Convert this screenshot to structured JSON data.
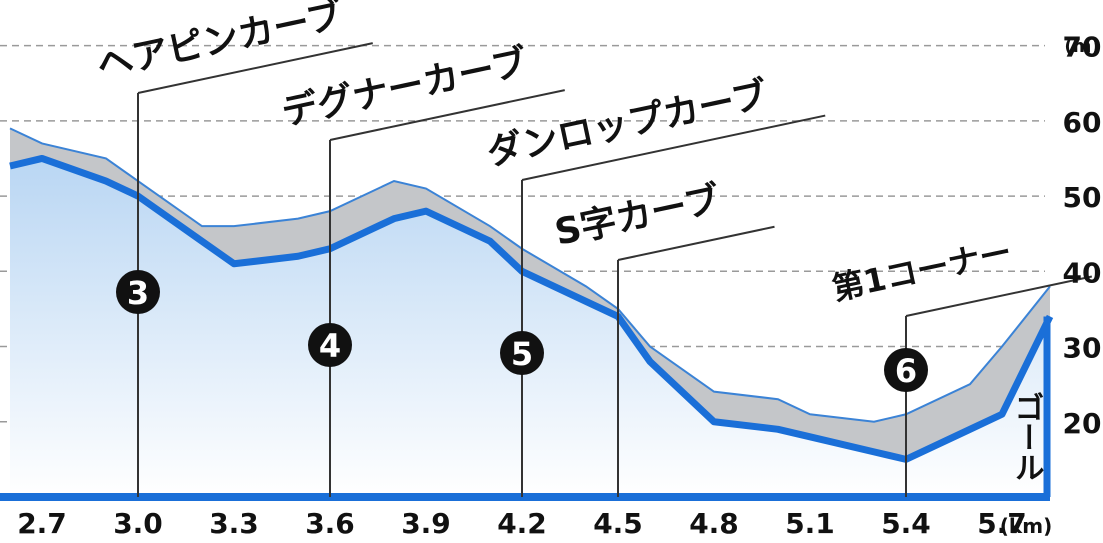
{
  "chart_data": {
    "type": "area",
    "x_unit": "(km)",
    "y_unit": "(m)",
    "xlim": [
      2.6,
      5.85
    ],
    "ylim": [
      10,
      75
    ],
    "x_ticks": [
      2.7,
      3.0,
      3.3,
      3.6,
      3.9,
      4.2,
      4.5,
      4.8,
      5.1,
      5.4,
      5.7
    ],
    "x_tick_labels": [
      "2.7",
      "3.0",
      "3.3",
      "3.6",
      "3.9",
      "4.2",
      "4.5",
      "4.8",
      "5.1",
      "5.4",
      "5.7"
    ],
    "y_ticks": [
      20,
      30,
      40,
      50,
      60,
      70
    ],
    "y_tick_labels": [
      "20",
      "30",
      "40",
      "50",
      "60",
      "70"
    ],
    "grid": "dashed-horizontal",
    "colors": {
      "line": "#1a6fd8",
      "outline": "#3b83d6",
      "fill_top": "#b9d6f3",
      "fill_bottom": "#ffffff",
      "bank": "#c4c6c9",
      "grid": "#9a9a9a",
      "leader": "#333333",
      "badge": "#111111"
    },
    "series": [
      {
        "x": [
          2.6,
          2.7,
          2.9,
          3.0,
          3.2,
          3.3,
          3.5,
          3.6,
          3.8,
          3.9,
          4.1,
          4.2,
          4.4,
          4.5,
          4.6,
          4.8,
          5.0,
          5.1,
          5.3,
          5.4,
          5.6,
          5.7,
          5.85
        ],
        "y": [
          54,
          55,
          52,
          50,
          44,
          41,
          42,
          43,
          47,
          48,
          44,
          40,
          36,
          34,
          28,
          20,
          19,
          18,
          16,
          15,
          19,
          21,
          34
        ]
      }
    ],
    "bank_top": {
      "x": [
        2.6,
        2.7,
        2.9,
        3.0,
        3.2,
        3.3,
        3.5,
        3.6,
        3.8,
        3.9,
        4.1,
        4.2,
        4.4,
        4.5,
        4.6,
        4.8,
        5.0,
        5.1,
        5.3,
        5.4,
        5.6,
        5.7,
        5.85
      ],
      "y": [
        59,
        57,
        55,
        52,
        46,
        46,
        47,
        48,
        52,
        51,
        46,
        43,
        38,
        35,
        30,
        24,
        23,
        21,
        20,
        21,
        25,
        30,
        38
      ]
    },
    "annotations": [
      {
        "text": "ヘアピンカーブ",
        "number": "3",
        "x": 3.0
      },
      {
        "text": "デグナーカーブ",
        "number": "4",
        "x": 3.6
      },
      {
        "text": "ダンロップカーブ",
        "number": "5",
        "x": 4.2
      },
      {
        "text": "S字カーブ",
        "number": "",
        "x": 4.5
      },
      {
        "text": "第1コーナー",
        "number": "6",
        "x": 5.4
      }
    ],
    "goal_label": "ゴール"
  }
}
